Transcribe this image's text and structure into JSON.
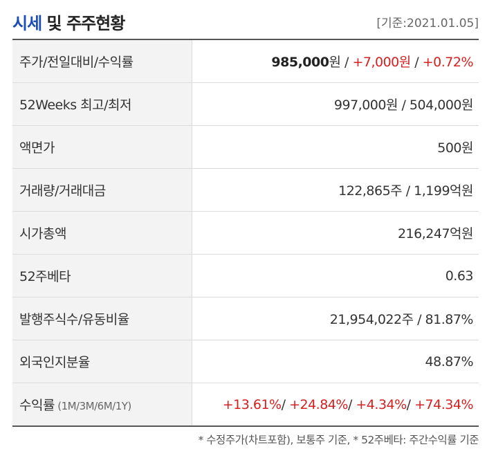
{
  "header": {
    "title_accent": "시세",
    "title_rest": " 및 주주현황",
    "date": "[기준:2021.01.05]"
  },
  "rows": {
    "price": {
      "label": "주가/전일대비/수익률",
      "price": "985,000",
      "price_unit": "원",
      "sep": " / ",
      "change": "+7,000원",
      "sep2": " / ",
      "rate": "+0.72%"
    },
    "weeks52": {
      "label": "52Weeks 최고/최저",
      "value": "997,000원 / 504,000원"
    },
    "par": {
      "label": "액면가",
      "value": "500원"
    },
    "volume": {
      "label": "거래량/거래대금",
      "value": "122,865주 / 1,199억원"
    },
    "marketcap": {
      "label": "시가총액",
      "value": "216,247억원"
    },
    "beta": {
      "label": "52주베타",
      "value": "0.63"
    },
    "shares": {
      "label": "발행주식수/유동비율",
      "value": "21,954,022주 / 81.87%"
    },
    "foreign": {
      "label": "외국인지분율",
      "value": "48.87%"
    },
    "returns": {
      "label": "수익률",
      "label_sub": " (1M/3M/6M/1Y)",
      "r1m": "+13.61%",
      "r3m": "+24.84%",
      "r6m": "+4.34%",
      "r1y": "+74.34%",
      "sep": "/ "
    }
  },
  "footnote": "* 수정주가(차트포함), 보통주 기준, * 52주베타: 주간수익률 기준",
  "colors": {
    "accent": "#1d4eb7",
    "up": "#d42020",
    "label_bg": "#f3f3f3"
  }
}
